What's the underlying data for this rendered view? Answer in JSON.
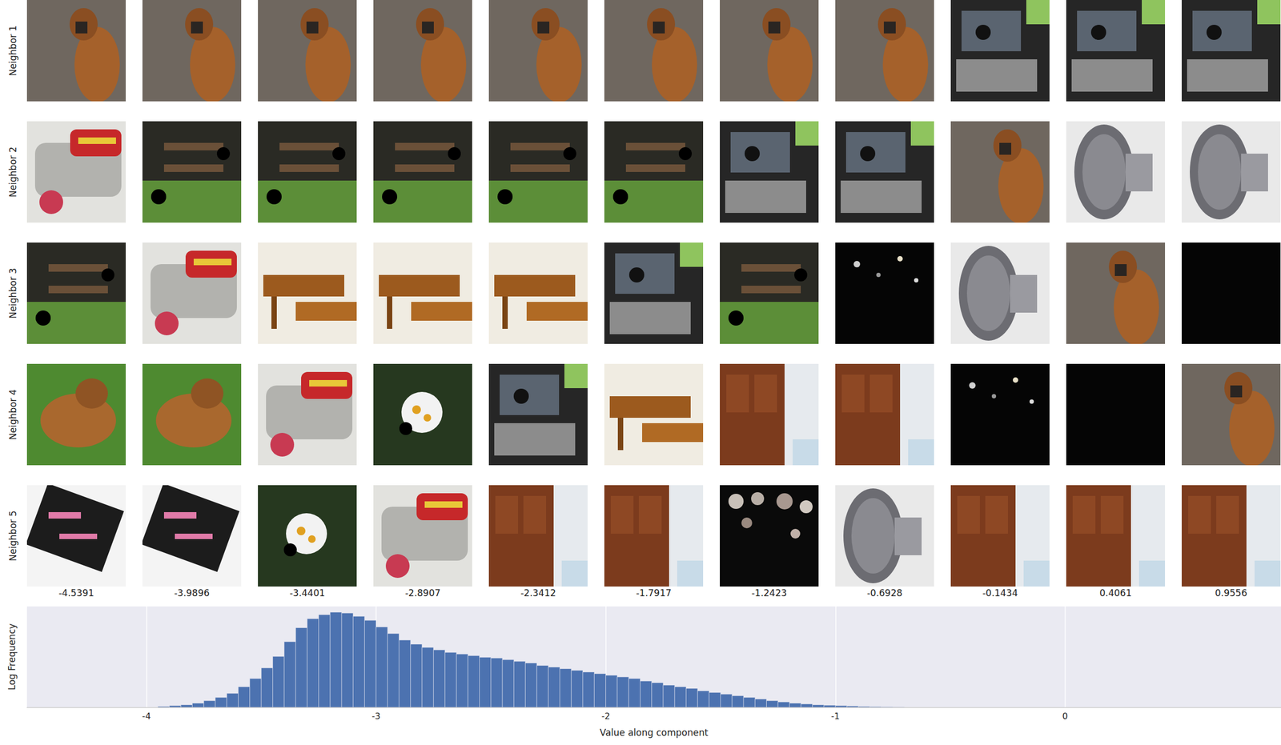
{
  "chart_data": {
    "type": "histogram",
    "x_label": "Value along component",
    "y_label": "Log Frequency",
    "bins": [
      -3.95,
      -3.9,
      -3.85,
      -3.8,
      -3.75,
      -3.7,
      -3.65,
      -3.6,
      -3.55,
      -3.5,
      -3.45,
      -3.4,
      -3.35,
      -3.3,
      -3.25,
      -3.2,
      -3.15,
      -3.1,
      -3.05,
      -3.0,
      -2.95,
      -2.9,
      -2.85,
      -2.8,
      -2.75,
      -2.7,
      -2.65,
      -2.6,
      -2.55,
      -2.5,
      -2.45,
      -2.4,
      -2.35,
      -2.3,
      -2.25,
      -2.2,
      -2.15,
      -2.1,
      -2.05,
      -2.0,
      -1.95,
      -1.9,
      -1.85,
      -1.8,
      -1.75,
      -1.7,
      -1.65,
      -1.6,
      -1.55,
      -1.5,
      -1.45,
      -1.4,
      -1.35,
      -1.3,
      -1.25,
      -1.2,
      -1.15,
      -1.1,
      -1.05,
      -1.0,
      -0.95,
      -0.9,
      -0.85,
      -0.8,
      -0.75,
      -0.7
    ],
    "counts": [
      1,
      2,
      3,
      5,
      8,
      12,
      17,
      25,
      35,
      48,
      62,
      80,
      97,
      108,
      113,
      116,
      115,
      111,
      106,
      98,
      90,
      82,
      77,
      73,
      70,
      67,
      65,
      63,
      61,
      60,
      58,
      56,
      54,
      51,
      49,
      47,
      45,
      43,
      41,
      39,
      37,
      35,
      32,
      30,
      27,
      25,
      23,
      20,
      18,
      16,
      14,
      12,
      10,
      8,
      6.5,
      5,
      4,
      3,
      2.5,
      2,
      1.5,
      1,
      0.7,
      0.5,
      0.3
    ],
    "color": "#4c72b0",
    "xlim": [
      -4.52,
      0.94
    ],
    "xticks": [
      -4,
      -3,
      -2,
      -1,
      0
    ],
    "ylim": [
      0,
      123
    ],
    "grid": true,
    "tick_labels": "x"
  },
  "image_grid": {
    "row_labels": [
      "Neighbor 1",
      "Neighbor 2",
      "Neighbor 3",
      "Neighbor 4",
      "Neighbor 5"
    ],
    "column_values": [
      -4.5391,
      -3.9896,
      -3.4401,
      -2.8907,
      -2.3412,
      -1.7917,
      -1.2423,
      -0.6928,
      -0.1434,
      0.4061,
      0.9556
    ]
  }
}
